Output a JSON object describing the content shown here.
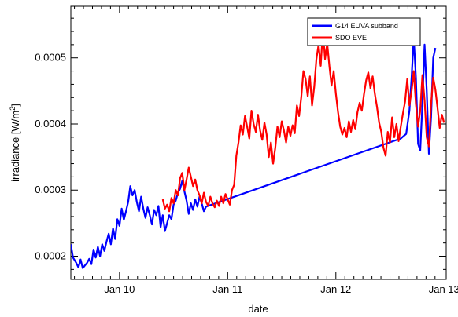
{
  "chart_data": {
    "type": "line",
    "title": "",
    "xlabel": "date",
    "ylabel": "irradiance [W/m²]",
    "ylabel_text": "irradiance [W/m",
    "ylabel_sup": "2",
    "ylabel_close": "]",
    "x_unit": "days (January)",
    "xlim": [
      9.55,
      13.02
    ],
    "ylim": [
      0.000165,
      0.000578
    ],
    "x_ticks": [
      {
        "value": 10,
        "label": "Jan 10"
      },
      {
        "value": 11,
        "label": "Jan 11"
      },
      {
        "value": 12,
        "label": "Jan 12"
      },
      {
        "value": 13,
        "label": "Jan 13"
      }
    ],
    "y_ticks": [
      {
        "value": 0.0002,
        "label": "0.0002"
      },
      {
        "value": 0.0003,
        "label": "0.0003"
      },
      {
        "value": 0.0004,
        "label": "0.0004"
      },
      {
        "value": 0.0005,
        "label": "0.0005"
      }
    ],
    "grid": false,
    "legend_position": "top-right",
    "series": [
      {
        "name": "G14 EUVA subband",
        "color": "#0000ff",
        "points": [
          [
            9.55,
            0.000218
          ],
          [
            9.57,
            0.000198
          ],
          [
            9.6,
            0.00019
          ],
          [
            9.62,
            0.000183
          ],
          [
            9.64,
            0.000195
          ],
          [
            9.66,
            0.000182
          ],
          [
            9.68,
            0.000186
          ],
          [
            9.7,
            0.00019
          ],
          [
            9.72,
            0.000196
          ],
          [
            9.74,
            0.000188
          ],
          [
            9.76,
            0.00021
          ],
          [
            9.78,
            0.000198
          ],
          [
            9.8,
            0.000214
          ],
          [
            9.82,
            0.0002
          ],
          [
            9.84,
            0.000218
          ],
          [
            9.86,
            0.000208
          ],
          [
            9.88,
            0.000222
          ],
          [
            9.9,
            0.000234
          ],
          [
            9.92,
            0.000218
          ],
          [
            9.94,
            0.000242
          ],
          [
            9.96,
            0.000226
          ],
          [
            9.98,
            0.000256
          ],
          [
            10.0,
            0.000246
          ],
          [
            10.02,
            0.000272
          ],
          [
            10.04,
            0.000255
          ],
          [
            10.06,
            0.000268
          ],
          [
            10.08,
            0.000282
          ],
          [
            10.1,
            0.000306
          ],
          [
            10.12,
            0.000292
          ],
          [
            10.14,
            0.0003
          ],
          [
            10.16,
            0.000282
          ],
          [
            10.18,
            0.000268
          ],
          [
            10.2,
            0.00029
          ],
          [
            10.22,
            0.000272
          ],
          [
            10.24,
            0.000258
          ],
          [
            10.26,
            0.000274
          ],
          [
            10.28,
            0.000262
          ],
          [
            10.3,
            0.000248
          ],
          [
            10.32,
            0.00027
          ],
          [
            10.34,
            0.000262
          ],
          [
            10.36,
            0.000276
          ],
          [
            10.38,
            0.000244
          ],
          [
            10.4,
            0.000262
          ],
          [
            10.42,
            0.000238
          ],
          [
            10.44,
            0.00025
          ],
          [
            10.46,
            0.000262
          ],
          [
            10.48,
            0.000256
          ],
          [
            10.5,
            0.000278
          ],
          [
            10.52,
            0.000284
          ],
          [
            10.54,
            0.000296
          ],
          [
            10.56,
            0.000302
          ],
          [
            10.58,
            0.000314
          ],
          [
            10.6,
            0.000298
          ],
          [
            10.62,
            0.000284
          ],
          [
            10.64,
            0.000264
          ],
          [
            10.66,
            0.00028
          ],
          [
            10.68,
            0.00027
          ],
          [
            10.7,
            0.000286
          ],
          [
            10.72,
            0.000275
          ],
          [
            10.74,
            0.00029
          ],
          [
            10.76,
            0.00028
          ],
          [
            10.78,
            0.000268
          ],
          [
            10.8,
            0.000275
          ],
          [
            12.6,
            0.000378
          ],
          [
            12.65,
            0.000385
          ],
          [
            12.68,
            0.00042
          ],
          [
            12.7,
            0.00047
          ],
          [
            12.72,
            0.00053
          ],
          [
            12.74,
            0.00047
          ],
          [
            12.76,
            0.00037
          ],
          [
            12.78,
            0.00036
          ],
          [
            12.8,
            0.00043
          ],
          [
            12.82,
            0.00052
          ],
          [
            12.84,
            0.00045
          ],
          [
            12.86,
            0.000355
          ],
          [
            12.88,
            0.00041
          ],
          [
            12.9,
            0.0005
          ],
          [
            12.92,
            0.000515
          ]
        ]
      },
      {
        "name": "SDO EVE",
        "color": "#ff0000",
        "points": [
          [
            10.4,
            0.000286
          ],
          [
            10.42,
            0.000272
          ],
          [
            10.44,
            0.000278
          ],
          [
            10.46,
            0.000268
          ],
          [
            10.48,
            0.000288
          ],
          [
            10.5,
            0.00028
          ],
          [
            10.52,
            0.0003
          ],
          [
            10.54,
            0.000292
          ],
          [
            10.56,
            0.000318
          ],
          [
            10.58,
            0.000326
          ],
          [
            10.6,
            0.0003
          ],
          [
            10.62,
            0.000316
          ],
          [
            10.64,
            0.000334
          ],
          [
            10.66,
            0.00032
          ],
          [
            10.68,
            0.000306
          ],
          [
            10.7,
            0.000316
          ],
          [
            10.72,
            0.0003
          ],
          [
            10.74,
            0.000292
          ],
          [
            10.76,
            0.00028
          ],
          [
            10.78,
            0.000296
          ],
          [
            10.8,
            0.000282
          ],
          [
            10.82,
            0.000276
          ],
          [
            10.84,
            0.00029
          ],
          [
            10.86,
            0.00028
          ],
          [
            10.88,
            0.000274
          ],
          [
            10.9,
            0.000284
          ],
          [
            10.92,
            0.000276
          ],
          [
            10.94,
            0.00029
          ],
          [
            10.96,
            0.00028
          ],
          [
            10.98,
            0.000294
          ],
          [
            11.0,
            0.000286
          ],
          [
            11.02,
            0.000278
          ],
          [
            11.04,
            0.0003
          ],
          [
            11.06,
            0.000308
          ],
          [
            11.08,
            0.000352
          ],
          [
            11.1,
            0.000372
          ],
          [
            11.12,
            0.000398
          ],
          [
            11.14,
            0.000384
          ],
          [
            11.16,
            0.000412
          ],
          [
            11.18,
            0.000396
          ],
          [
            11.2,
            0.000378
          ],
          [
            11.22,
            0.00042
          ],
          [
            11.24,
            0.0004
          ],
          [
            11.26,
            0.000388
          ],
          [
            11.28,
            0.000414
          ],
          [
            11.3,
            0.00039
          ],
          [
            11.32,
            0.000376
          ],
          [
            11.34,
            0.000402
          ],
          [
            11.36,
            0.000384
          ],
          [
            11.38,
            0.00035
          ],
          [
            11.4,
            0.000372
          ],
          [
            11.42,
            0.00034
          ],
          [
            11.44,
            0.000364
          ],
          [
            11.46,
            0.000396
          ],
          [
            11.48,
            0.00038
          ],
          [
            11.5,
            0.000404
          ],
          [
            11.52,
            0.00039
          ],
          [
            11.54,
            0.000372
          ],
          [
            11.56,
            0.000396
          ],
          [
            11.58,
            0.000382
          ],
          [
            11.6,
            0.000398
          ],
          [
            11.62,
            0.000386
          ],
          [
            11.64,
            0.000428
          ],
          [
            11.66,
            0.000412
          ],
          [
            11.68,
            0.00044
          ],
          [
            11.7,
            0.00048
          ],
          [
            11.72,
            0.000468
          ],
          [
            11.74,
            0.000442
          ],
          [
            11.76,
            0.000472
          ],
          [
            11.78,
            0.000428
          ],
          [
            11.8,
            0.000456
          ],
          [
            11.82,
            0.000498
          ],
          [
            11.84,
            0.00052
          ],
          [
            11.86,
            0.000488
          ],
          [
            11.88,
            0.000542
          ],
          [
            11.9,
            0.000498
          ],
          [
            11.92,
            0.000522
          ],
          [
            11.94,
            0.000488
          ],
          [
            11.96,
            0.000458
          ],
          [
            11.98,
            0.00048
          ],
          [
            12.0,
            0.000446
          ],
          [
            12.02,
            0.000418
          ],
          [
            12.04,
            0.000396
          ],
          [
            12.06,
            0.000384
          ],
          [
            12.08,
            0.000394
          ],
          [
            12.1,
            0.00038
          ],
          [
            12.12,
            0.000404
          ],
          [
            12.14,
            0.000388
          ],
          [
            12.16,
            0.000406
          ],
          [
            12.18,
            0.000392
          ],
          [
            12.2,
            0.000418
          ],
          [
            12.22,
            0.000432
          ],
          [
            12.24,
            0.00042
          ],
          [
            12.26,
            0.000445
          ],
          [
            12.28,
            0.000466
          ],
          [
            12.3,
            0.000478
          ],
          [
            12.32,
            0.000454
          ],
          [
            12.34,
            0.000472
          ],
          [
            12.36,
            0.000446
          ],
          [
            12.38,
            0.000426
          ],
          [
            12.4,
            0.000402
          ],
          [
            12.42,
            0.000388
          ],
          [
            12.44,
            0.000364
          ],
          [
            12.46,
            0.000352
          ],
          [
            12.48,
            0.000388
          ],
          [
            12.5,
            0.000372
          ],
          [
            12.52,
            0.00041
          ],
          [
            12.54,
            0.00038
          ],
          [
            12.56,
            0.0004
          ],
          [
            12.58,
            0.000374
          ],
          [
            12.6,
            0.000396
          ],
          [
            12.62,
            0.000416
          ],
          [
            12.64,
            0.000434
          ],
          [
            12.66,
            0.000468
          ],
          [
            12.68,
            0.000428
          ],
          [
            12.7,
            0.00045
          ],
          [
            12.72,
            0.00048
          ],
          [
            12.74,
            0.00043
          ],
          [
            12.76,
            0.000396
          ],
          [
            12.78,
            0.00042
          ],
          [
            12.8,
            0.000474
          ],
          [
            12.82,
            0.000436
          ],
          [
            12.84,
            0.00038
          ],
          [
            12.86,
            0.000366
          ],
          [
            12.88,
            0.00043
          ],
          [
            12.9,
            0.00047
          ],
          [
            12.92,
            0.000452
          ],
          [
            12.94,
            0.000424
          ],
          [
            12.96,
            0.000394
          ],
          [
            12.98,
            0.000414
          ],
          [
            13.0,
            0.000402
          ]
        ]
      }
    ]
  }
}
